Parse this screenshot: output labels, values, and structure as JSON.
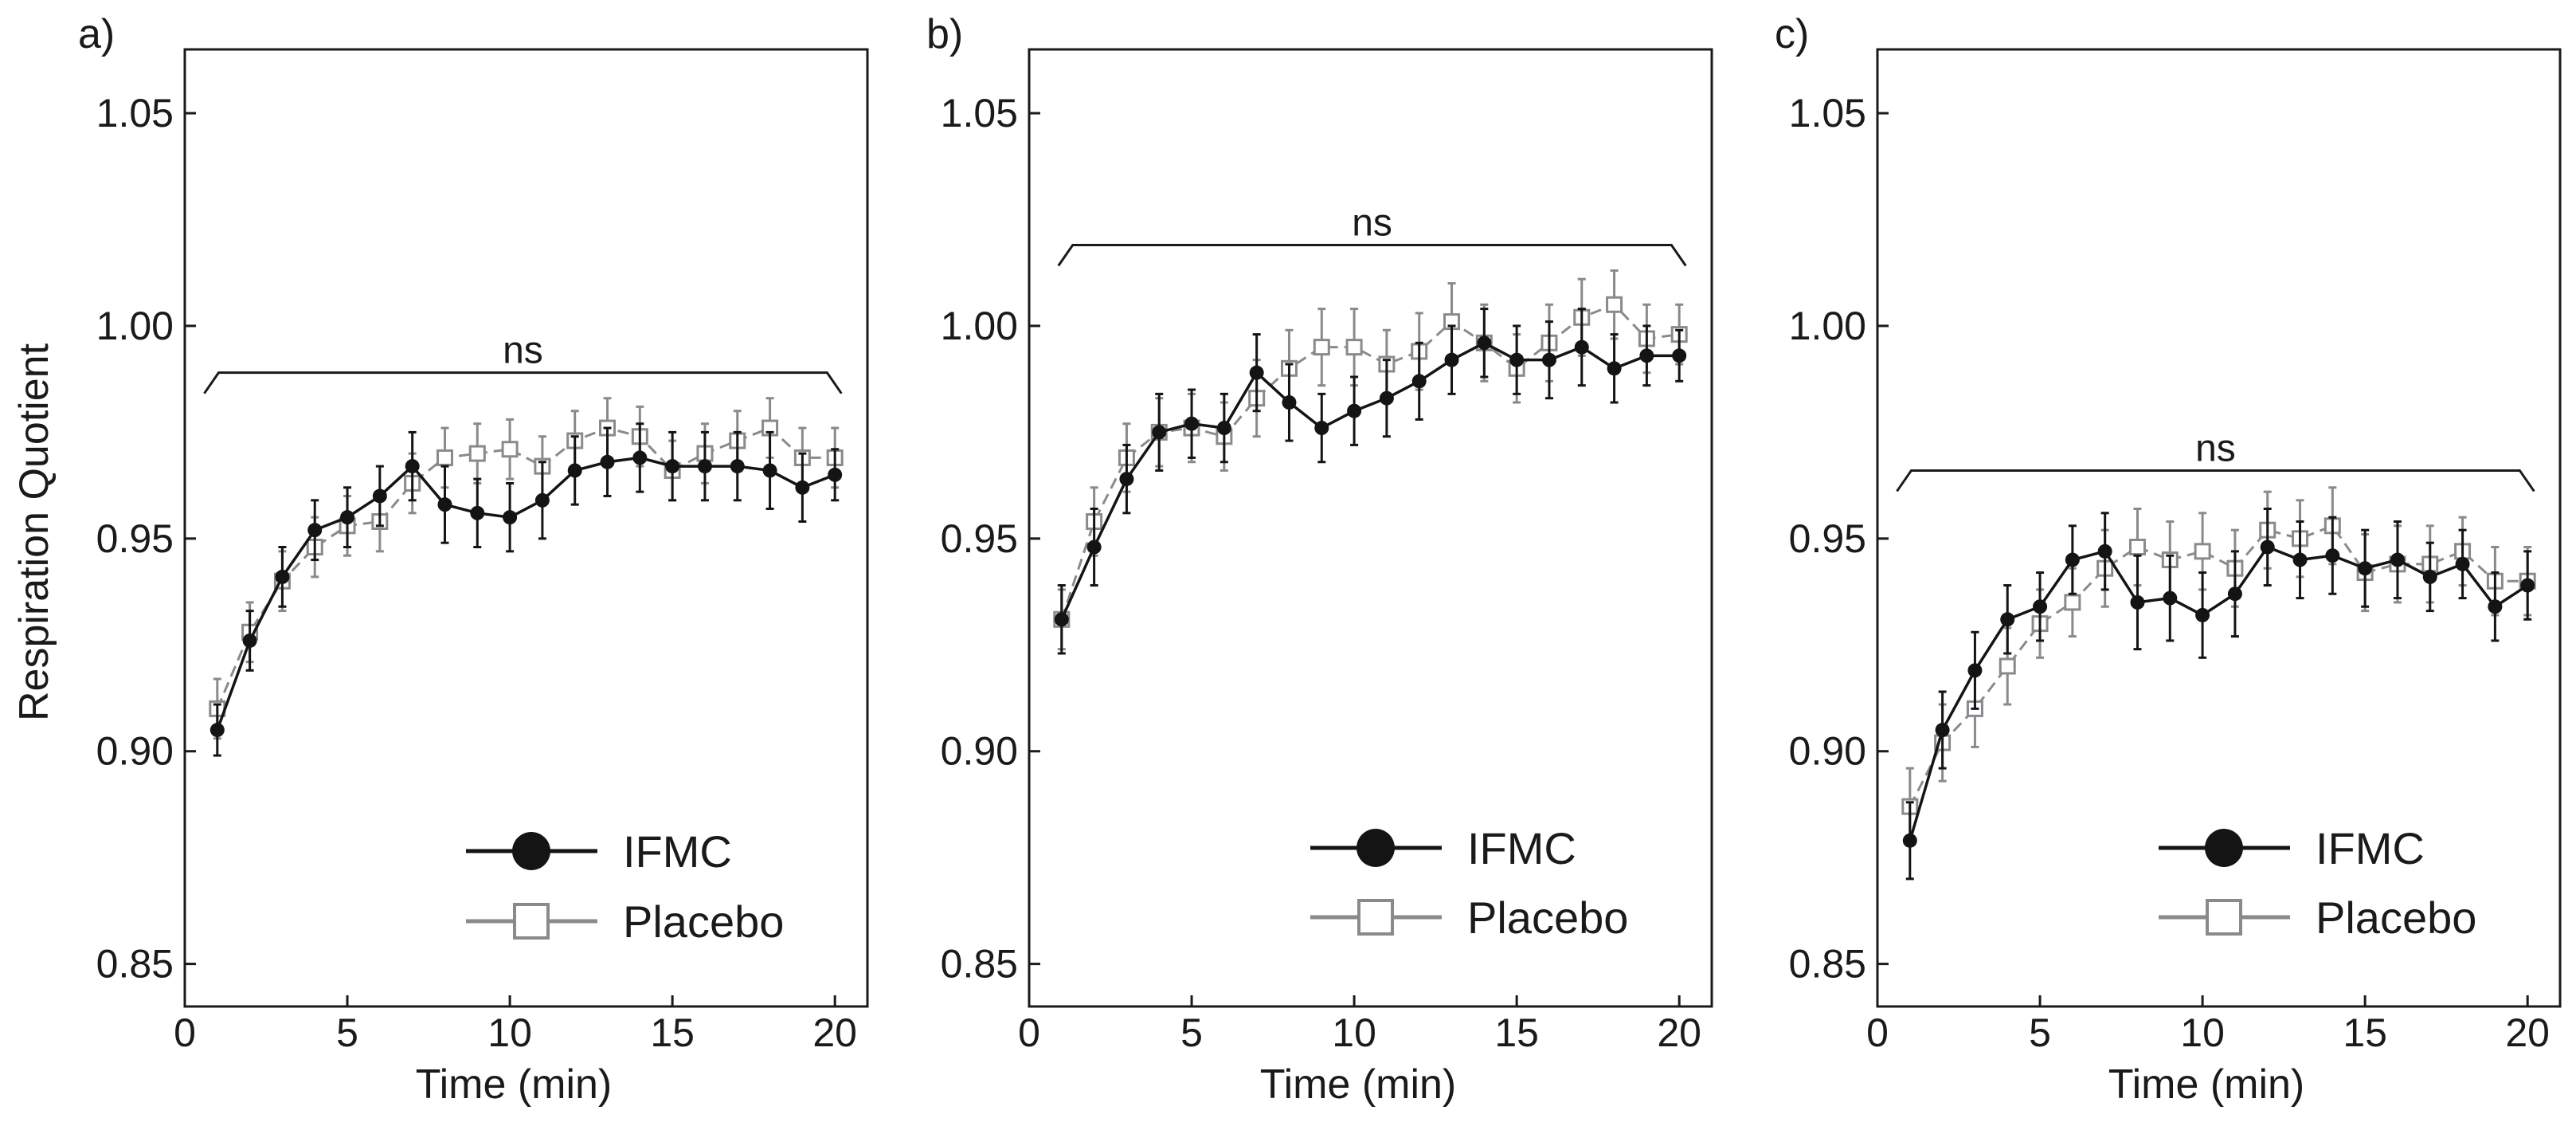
{
  "figure": {
    "ylabel": "Respiration Quotient",
    "colors": {
      "ifmc": "#141414",
      "placebo": "#8a8a8e",
      "axis": "#1a1a1a"
    }
  },
  "chart_data": [
    {
      "type": "line",
      "panel_label": "a)",
      "xlabel": "Time (min)",
      "ylabel": "Respiration Quotient",
      "xlim": [
        0,
        21
      ],
      "ylim": [
        0.84,
        1.065
      ],
      "xticks": [
        0,
        5,
        10,
        15,
        20
      ],
      "yticks": [
        0.85,
        0.9,
        0.95,
        1.0,
        1.05
      ],
      "x": [
        1,
        2,
        3,
        4,
        5,
        6,
        7,
        8,
        9,
        10,
        11,
        12,
        13,
        14,
        15,
        16,
        17,
        18,
        19,
        20
      ],
      "series": [
        {
          "name": "IFMC",
          "marker": "filled-circle",
          "line": "solid",
          "values": [
            0.905,
            0.926,
            0.941,
            0.952,
            0.955,
            0.96,
            0.967,
            0.958,
            0.956,
            0.955,
            0.959,
            0.966,
            0.968,
            0.969,
            0.967,
            0.967,
            0.967,
            0.966,
            0.962,
            0.965
          ],
          "errors": [
            0.006,
            0.007,
            0.007,
            0.007,
            0.007,
            0.007,
            0.008,
            0.009,
            0.008,
            0.008,
            0.009,
            0.008,
            0.008,
            0.008,
            0.008,
            0.008,
            0.008,
            0.009,
            0.008,
            0.006
          ]
        },
        {
          "name": "Placebo",
          "marker": "open-square",
          "line": "dashed",
          "values": [
            0.91,
            0.928,
            0.94,
            0.948,
            0.953,
            0.954,
            0.963,
            0.969,
            0.97,
            0.971,
            0.967,
            0.973,
            0.976,
            0.974,
            0.966,
            0.97,
            0.973,
            0.976,
            0.969,
            0.969
          ],
          "errors": [
            0.007,
            0.007,
            0.007,
            0.007,
            0.007,
            0.007,
            0.007,
            0.007,
            0.007,
            0.007,
            0.007,
            0.007,
            0.007,
            0.007,
            0.007,
            0.007,
            0.007,
            0.007,
            0.007,
            0.007
          ]
        }
      ],
      "significance": {
        "label": "ns",
        "x_start": 0.6,
        "x_end": 20.2,
        "y": 0.989
      },
      "legend_position": "lower-right"
    },
    {
      "type": "line",
      "panel_label": "b)",
      "xlabel": "Time (min)",
      "ylabel": "",
      "xlim": [
        0,
        21
      ],
      "ylim": [
        0.84,
        1.065
      ],
      "xticks": [
        0,
        5,
        10,
        15,
        20
      ],
      "yticks": [
        0.85,
        0.9,
        0.95,
        1.0,
        1.05
      ],
      "x": [
        1,
        2,
        3,
        4,
        5,
        6,
        7,
        8,
        9,
        10,
        11,
        12,
        13,
        14,
        15,
        16,
        17,
        18,
        19,
        20
      ],
      "series": [
        {
          "name": "IFMC",
          "marker": "filled-circle",
          "line": "solid",
          "values": [
            0.931,
            0.948,
            0.964,
            0.975,
            0.977,
            0.976,
            0.989,
            0.982,
            0.976,
            0.98,
            0.983,
            0.987,
            0.992,
            0.996,
            0.992,
            0.992,
            0.995,
            0.99,
            0.993,
            0.993
          ],
          "errors": [
            0.008,
            0.009,
            0.008,
            0.009,
            0.008,
            0.008,
            0.009,
            0.009,
            0.008,
            0.008,
            0.009,
            0.009,
            0.008,
            0.008,
            0.008,
            0.009,
            0.009,
            0.008,
            0.007,
            0.006
          ]
        },
        {
          "name": "Placebo",
          "marker": "open-square",
          "line": "dashed",
          "values": [
            0.931,
            0.954,
            0.969,
            0.975,
            0.976,
            0.974,
            0.983,
            0.99,
            0.995,
            0.995,
            0.991,
            0.994,
            1.001,
            0.996,
            0.99,
            0.996,
            1.002,
            1.005,
            0.997,
            0.998
          ],
          "errors": [
            0.007,
            0.008,
            0.008,
            0.008,
            0.008,
            0.008,
            0.009,
            0.009,
            0.009,
            0.009,
            0.008,
            0.009,
            0.009,
            0.009,
            0.008,
            0.009,
            0.009,
            0.008,
            0.008,
            0.007
          ]
        }
      ],
      "significance": {
        "label": "ns",
        "x_start": 0.9,
        "x_end": 20.2,
        "y": 1.019
      },
      "legend_position": "lower-right"
    },
    {
      "type": "line",
      "panel_label": "c)",
      "xlabel": "Time (min)",
      "ylabel": "",
      "xlim": [
        0,
        21
      ],
      "ylim": [
        0.84,
        1.065
      ],
      "xticks": [
        0,
        5,
        10,
        15,
        20
      ],
      "yticks": [
        0.85,
        0.9,
        0.95,
        1.0,
        1.05
      ],
      "x": [
        1,
        2,
        3,
        4,
        5,
        6,
        7,
        8,
        9,
        10,
        11,
        12,
        13,
        14,
        15,
        16,
        17,
        18,
        19,
        20
      ],
      "series": [
        {
          "name": "IFMC",
          "marker": "filled-circle",
          "line": "solid",
          "values": [
            0.879,
            0.905,
            0.919,
            0.931,
            0.934,
            0.945,
            0.947,
            0.935,
            0.936,
            0.932,
            0.937,
            0.948,
            0.945,
            0.946,
            0.943,
            0.945,
            0.941,
            0.944,
            0.934,
            0.939
          ],
          "errors": [
            0.009,
            0.009,
            0.009,
            0.008,
            0.008,
            0.008,
            0.009,
            0.011,
            0.01,
            0.01,
            0.01,
            0.009,
            0.009,
            0.009,
            0.009,
            0.009,
            0.008,
            0.008,
            0.008,
            0.008
          ]
        },
        {
          "name": "Placebo",
          "marker": "open-square",
          "line": "dashed",
          "values": [
            0.887,
            0.902,
            0.91,
            0.92,
            0.93,
            0.935,
            0.943,
            0.948,
            0.945,
            0.947,
            0.943,
            0.952,
            0.95,
            0.953,
            0.942,
            0.944,
            0.944,
            0.947,
            0.94,
            0.94
          ],
          "errors": [
            0.009,
            0.009,
            0.009,
            0.009,
            0.008,
            0.008,
            0.009,
            0.009,
            0.009,
            0.009,
            0.009,
            0.009,
            0.009,
            0.009,
            0.009,
            0.009,
            0.009,
            0.008,
            0.008,
            0.008
          ]
        }
      ],
      "significance": {
        "label": "ns",
        "x_start": 0.6,
        "x_end": 20.2,
        "y": 0.966
      },
      "legend_position": "lower-right"
    }
  ]
}
